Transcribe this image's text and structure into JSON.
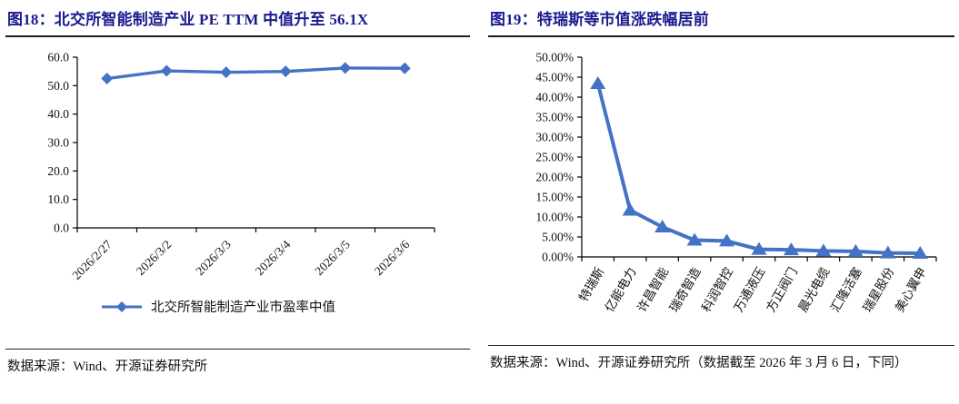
{
  "figures": [
    {
      "title": "图18：北交所智能制造产业 PE TTM 中值升至 56.1X",
      "source": "数据来源：Wind、开源证券研究所"
    },
    {
      "title": "图19：特瑞斯等市值涨跌幅居前",
      "source": "数据来源：Wind、开源证券研究所（数据截至 2026 年 3 月 6 日，下同）"
    }
  ],
  "chart_data": [
    {
      "type": "line",
      "title": "图18：北交所智能制造产业 PE TTM 中值升至 56.1X",
      "categories": [
        "2026/2/27",
        "2026/3/2",
        "2026/3/3",
        "2026/3/4",
        "2026/3/5",
        "2026/3/6"
      ],
      "series": [
        {
          "name": "北交所智能制造产业市盈率中值",
          "values": [
            52.5,
            55.2,
            54.7,
            55.0,
            56.2,
            56.1
          ]
        }
      ],
      "ylabel": "",
      "xlabel": "",
      "ylim": [
        0,
        60
      ],
      "ytick_step": 10,
      "ytick_format": "fixed1",
      "marker": "diamond",
      "grid": false,
      "legend_position": "bottom",
      "line_color": "#4472C4"
    },
    {
      "type": "line",
      "title": "图19：特瑞斯等市值涨跌幅居前",
      "categories": [
        "特瑞斯",
        "亿能电力",
        "许昌智能",
        "瑞奇智造",
        "科润智控",
        "万通液压",
        "方正阀门",
        "晨光电缆",
        "汇隆活塞",
        "瑞星股份",
        "美心翼申"
      ],
      "values": [
        43.4,
        11.7,
        7.5,
        4.2,
        4.0,
        1.9,
        1.8,
        1.5,
        1.4,
        1.0,
        0.9
      ],
      "ylabel": "",
      "xlabel": "",
      "ylim": [
        0,
        50
      ],
      "ytick_step": 5,
      "ytick_format": "percent2",
      "marker": "triangle",
      "grid": false,
      "legend_position": "none",
      "line_color": "#4472C4"
    }
  ],
  "colors": {
    "series_line": "#4472C4",
    "title_text": "#1b1b8f",
    "axis": "#000000"
  }
}
